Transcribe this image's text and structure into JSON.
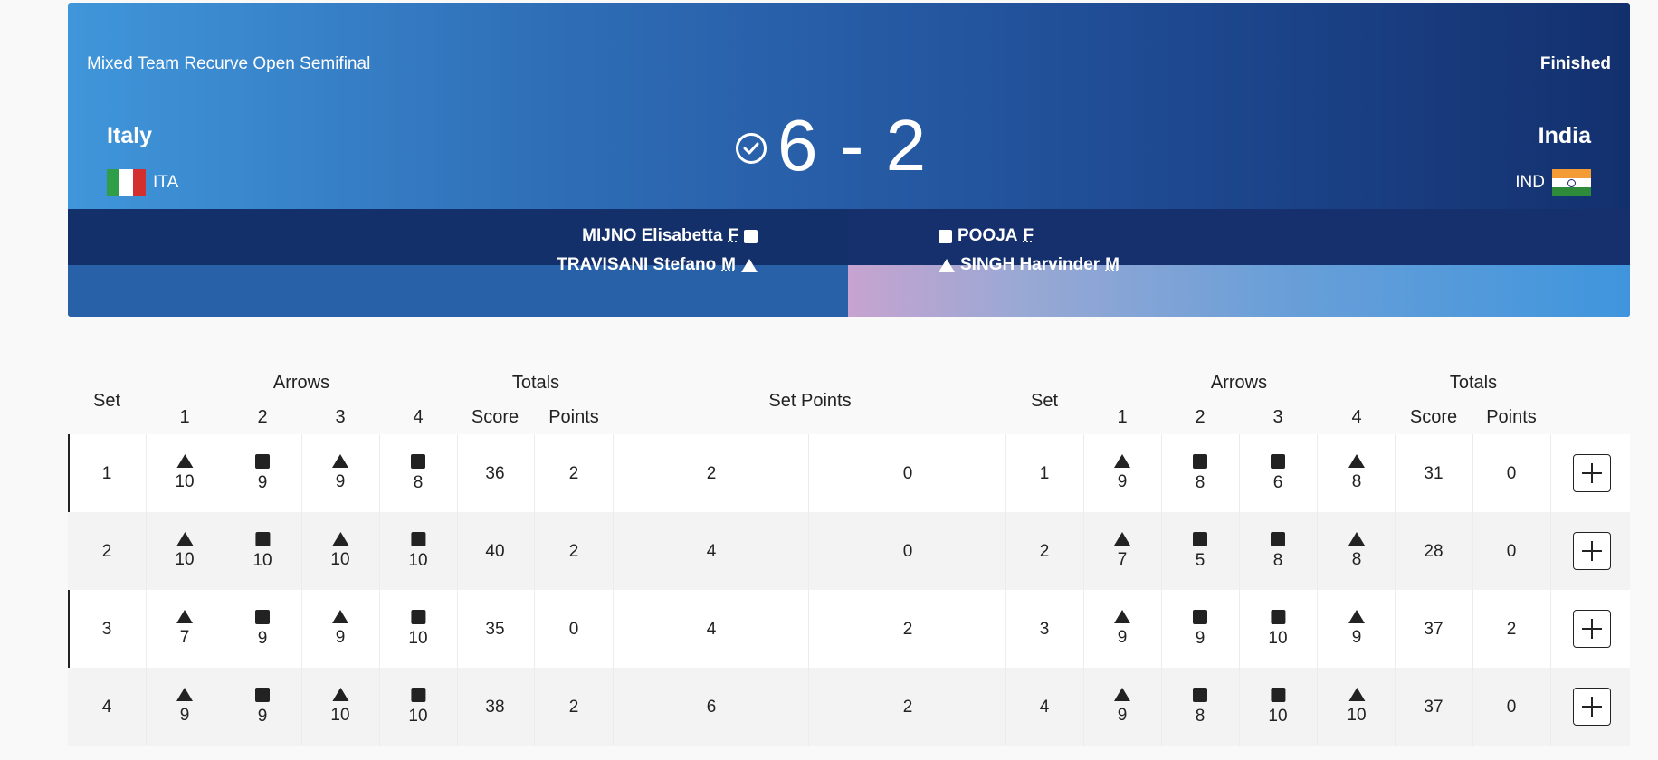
{
  "match": {
    "event": "Mixed Team Recurve Open Semifinal",
    "status": "Finished",
    "score": "6 - 2"
  },
  "team_left": {
    "name": "Italy",
    "code": "ITA",
    "flag_colors": [
      "#2e9e48",
      "#ffffff",
      "#d32f2f"
    ],
    "athletes": [
      {
        "name": "MIJNO Elisabetta",
        "gender": "F",
        "symbol": "square-icon"
      },
      {
        "name": "TRAVISANI Stefano",
        "gender": "M",
        "symbol": "triangle-icon"
      }
    ]
  },
  "team_right": {
    "name": "India",
    "code": "IND",
    "flag_colors": [
      "#f39c35",
      "#ffffff",
      "#2e8b3a"
    ],
    "athletes": [
      {
        "name": "POOJA",
        "gender": "F",
        "symbol": "square-icon"
      },
      {
        "name": "SINGH Harvinder",
        "gender": "M",
        "symbol": "triangle-icon"
      }
    ]
  },
  "table": {
    "headers": {
      "set": "Set",
      "arrows": "Arrows",
      "totals": "Totals",
      "arrow_nums": [
        "1",
        "2",
        "3",
        "4"
      ],
      "score": "Score",
      "points": "Points",
      "set_points": "Set Points"
    },
    "rows": [
      {
        "set": "1",
        "left": {
          "arrows": [
            "10",
            "9",
            "9",
            "8"
          ],
          "shapes": [
            "tri",
            "sq",
            "tri",
            "sq"
          ],
          "score": "36",
          "points": "2"
        },
        "set_points": [
          "2",
          "0"
        ],
        "right": {
          "arrows": [
            "9",
            "8",
            "6",
            "8"
          ],
          "shapes": [
            "tri",
            "sq",
            "sq",
            "tri"
          ],
          "score": "31",
          "points": "0"
        }
      },
      {
        "set": "2",
        "left": {
          "arrows": [
            "10",
            "10",
            "10",
            "10"
          ],
          "shapes": [
            "tri",
            "sq",
            "tri",
            "sq"
          ],
          "score": "40",
          "points": "2"
        },
        "set_points": [
          "4",
          "0"
        ],
        "right": {
          "arrows": [
            "7",
            "5",
            "8",
            "8"
          ],
          "shapes": [
            "tri",
            "sq",
            "sq",
            "tri"
          ],
          "score": "28",
          "points": "0"
        }
      },
      {
        "set": "3",
        "left": {
          "arrows": [
            "7",
            "9",
            "9",
            "10"
          ],
          "shapes": [
            "tri",
            "sq",
            "tri",
            "sq"
          ],
          "score": "35",
          "points": "0"
        },
        "set_points": [
          "4",
          "2"
        ],
        "right": {
          "arrows": [
            "9",
            "9",
            "10",
            "9"
          ],
          "shapes": [
            "tri",
            "sq",
            "sq",
            "tri"
          ],
          "score": "37",
          "points": "2"
        }
      },
      {
        "set": "4",
        "left": {
          "arrows": [
            "9",
            "9",
            "10",
            "10"
          ],
          "shapes": [
            "tri",
            "sq",
            "tri",
            "sq"
          ],
          "score": "38",
          "points": "2"
        },
        "set_points": [
          "6",
          "2"
        ],
        "right": {
          "arrows": [
            "9",
            "8",
            "10",
            "10"
          ],
          "shapes": [
            "tri",
            "sq",
            "sq",
            "tri"
          ],
          "score": "37",
          "points": "0"
        }
      }
    ]
  }
}
